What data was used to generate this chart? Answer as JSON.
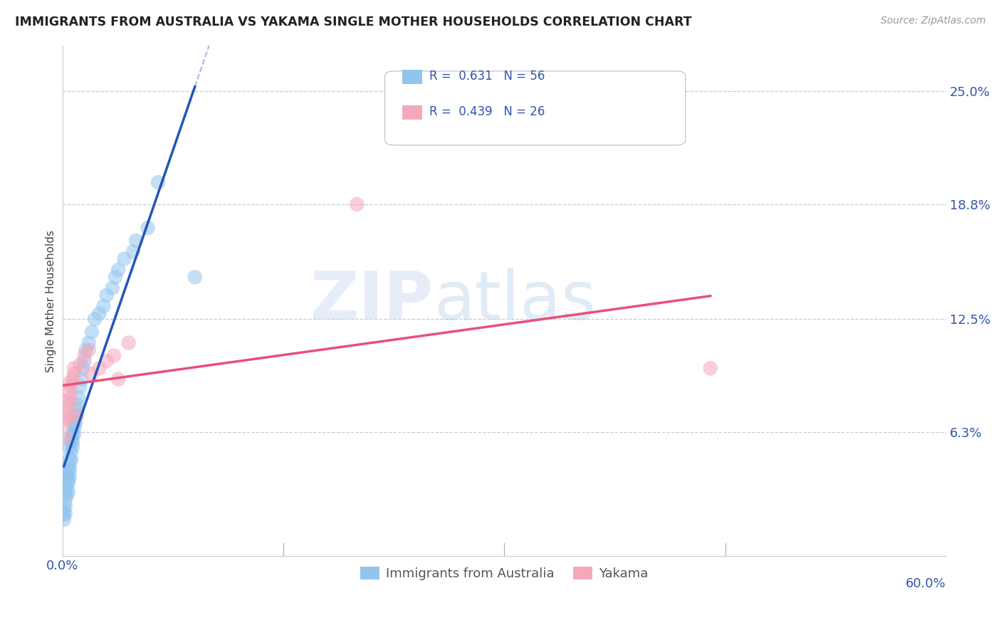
{
  "title": "IMMIGRANTS FROM AUSTRALIA VS YAKAMA SINGLE MOTHER HOUSEHOLDS CORRELATION CHART",
  "source": "Source: ZipAtlas.com",
  "xlabel_blue": "Immigrants from Australia",
  "xlabel_pink": "Yakama",
  "ylabel": "Single Mother Households",
  "xlim": [
    0.0,
    0.6
  ],
  "ylim": [
    -0.005,
    0.275
  ],
  "yticks": [
    0.063,
    0.125,
    0.188,
    0.25
  ],
  "ytick_labels": [
    "6.3%",
    "12.5%",
    "18.8%",
    "25.0%"
  ],
  "r_blue": 0.631,
  "n_blue": 56,
  "r_pink": 0.439,
  "n_pink": 26,
  "blue_color": "#92C5EE",
  "pink_color": "#F4A8BC",
  "blue_line_color": "#2255BB",
  "pink_line_color": "#E8507A",
  "grid_color": "#C8C8DC",
  "background_color": "#FFFFFF",
  "watermark_zip": "ZIP",
  "watermark_atlas": "atlas",
  "blue_scatter_x": [
    0.001,
    0.001,
    0.001,
    0.002,
    0.002,
    0.002,
    0.002,
    0.003,
    0.003,
    0.003,
    0.003,
    0.003,
    0.004,
    0.004,
    0.004,
    0.004,
    0.005,
    0.005,
    0.005,
    0.005,
    0.005,
    0.006,
    0.006,
    0.006,
    0.006,
    0.007,
    0.007,
    0.007,
    0.008,
    0.008,
    0.008,
    0.009,
    0.009,
    0.01,
    0.01,
    0.011,
    0.012,
    0.013,
    0.014,
    0.015,
    0.016,
    0.018,
    0.02,
    0.022,
    0.025,
    0.028,
    0.03,
    0.034,
    0.036,
    0.038,
    0.042,
    0.048,
    0.05,
    0.058,
    0.065,
    0.09
  ],
  "blue_scatter_y": [
    0.02,
    0.018,
    0.015,
    0.03,
    0.025,
    0.022,
    0.018,
    0.035,
    0.032,
    0.028,
    0.04,
    0.038,
    0.042,
    0.038,
    0.035,
    0.03,
    0.048,
    0.045,
    0.042,
    0.038,
    0.055,
    0.052,
    0.048,
    0.06,
    0.058,
    0.062,
    0.058,
    0.055,
    0.068,
    0.065,
    0.062,
    0.072,
    0.068,
    0.078,
    0.075,
    0.082,
    0.088,
    0.092,
    0.098,
    0.102,
    0.108,
    0.112,
    0.118,
    0.125,
    0.128,
    0.132,
    0.138,
    0.142,
    0.148,
    0.152,
    0.158,
    0.162,
    0.168,
    0.175,
    0.2,
    0.148
  ],
  "pink_scatter_x": [
    0.001,
    0.002,
    0.002,
    0.003,
    0.003,
    0.004,
    0.004,
    0.005,
    0.005,
    0.006,
    0.006,
    0.007,
    0.008,
    0.008,
    0.01,
    0.012,
    0.015,
    0.018,
    0.02,
    0.025,
    0.03,
    0.035,
    0.038,
    0.045,
    0.2,
    0.44
  ],
  "pink_scatter_y": [
    0.068,
    0.06,
    0.075,
    0.07,
    0.08,
    0.072,
    0.085,
    0.078,
    0.09,
    0.082,
    0.088,
    0.092,
    0.095,
    0.098,
    0.072,
    0.1,
    0.105,
    0.108,
    0.095,
    0.098,
    0.102,
    0.105,
    0.092,
    0.112,
    0.188,
    0.098
  ],
  "blue_trendline_x": [
    0.001,
    0.09
  ],
  "pink_trendline_x": [
    0.001,
    0.44
  ],
  "dash_line_color": "#8899CC"
}
